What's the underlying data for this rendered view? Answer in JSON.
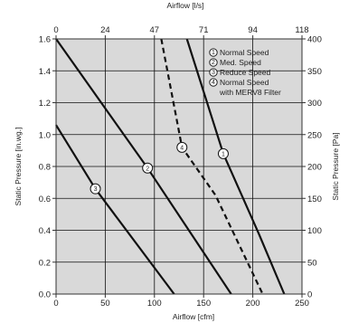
{
  "chart_data": {
    "type": "line",
    "x_bottom": {
      "label": "Airflow [cfm]",
      "range": [
        0,
        250
      ],
      "ticks": [
        "0",
        "50",
        "100",
        "150",
        "200",
        "250"
      ]
    },
    "x_top": {
      "label": "Airflow [l/s]",
      "ticks": [
        "0",
        "24",
        "47",
        "71",
        "94",
        "118"
      ]
    },
    "y_left": {
      "label": "Static Pressure [in.wg.]",
      "range": [
        0,
        1.6
      ],
      "ticks": [
        "0.0",
        "0.2",
        "0.4",
        "0.6",
        "0.8",
        "1.0",
        "1.2",
        "1.4",
        "1.6"
      ]
    },
    "y_right": {
      "label": "Static Pressure [Pa]",
      "ticks": [
        "0",
        "50",
        "100",
        "150",
        "200",
        "250",
        "300",
        "350",
        "400"
      ]
    },
    "grid": true,
    "legend_position": "top-right",
    "series": [
      {
        "marker": "1",
        "name": "Normal Speed",
        "dash": false,
        "points": [
          [
            133,
            1.6
          ],
          [
            170,
            0.88
          ],
          [
            206,
            0.38
          ],
          [
            232,
            0.0
          ]
        ]
      },
      {
        "marker": "2",
        "name": "Med. Speed",
        "dash": false,
        "points": [
          [
            0,
            1.6
          ],
          [
            93,
            0.79
          ],
          [
            178,
            0.0
          ]
        ]
      },
      {
        "marker": "3",
        "name": "Reduce Speed",
        "dash": false,
        "points": [
          [
            0,
            1.06
          ],
          [
            40,
            0.66
          ],
          [
            120,
            0.0
          ]
        ]
      },
      {
        "marker": "4",
        "name": "Normal Speed",
        "name2": "with MERV8 Filter",
        "dash": true,
        "points": [
          [
            107,
            1.6
          ],
          [
            128,
            0.92
          ],
          [
            162,
            0.62
          ],
          [
            210,
            0.0
          ]
        ]
      }
    ],
    "line_markers": [
      {
        "label": "1",
        "x": 170,
        "y": 0.88
      },
      {
        "label": "2",
        "x": 93,
        "y": 0.79
      },
      {
        "label": "3",
        "x": 40,
        "y": 0.66
      },
      {
        "label": "4",
        "x": 128,
        "y": 0.92
      }
    ],
    "colors": {
      "plot_bg": "#d9d9d9",
      "line": "#111111",
      "axis": "#333333"
    }
  }
}
